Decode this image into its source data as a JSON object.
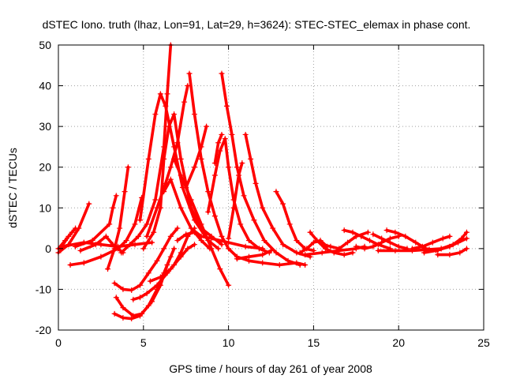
{
  "chart_data": {
    "type": "scatter",
    "title": "dSTEC Iono. truth (lhaz, Lon=91, Lat=29, h=3624): STEC-STEC_elemax in phase cont.",
    "xlabel": "GPS time / hours of day 261 of year 2008",
    "ylabel": "dSTEC  / TECUs",
    "xlim": [
      0,
      25
    ],
    "ylim": [
      -20,
      50
    ],
    "xticks": [
      0,
      5,
      10,
      15,
      20,
      25
    ],
    "yticks": [
      -20,
      -10,
      0,
      10,
      20,
      30,
      40,
      50
    ],
    "x_tick_labels": [
      "0",
      "5",
      "10",
      "15",
      "20",
      "25"
    ],
    "y_tick_labels": [
      "-20",
      "-10",
      "0",
      "10",
      "20",
      "30",
      "40",
      "50"
    ],
    "grid": true,
    "legend": "none",
    "marker": "plus",
    "color": "#ff0000",
    "series": [
      {
        "points": [
          [
            0.0,
            0.0
          ],
          [
            0.4,
            2.0
          ],
          [
            0.8,
            4.0
          ]
        ]
      },
      {
        "points": [
          [
            0.0,
            -1.0
          ],
          [
            0.6,
            1.0
          ],
          [
            1.2,
            5.0
          ],
          [
            1.8,
            11.0
          ]
        ]
      },
      {
        "points": [
          [
            0.1,
            0.0
          ],
          [
            0.6,
            3.0
          ],
          [
            1.0,
            5.0
          ]
        ]
      },
      {
        "points": [
          [
            0.2,
            0.5
          ],
          [
            1.5,
            1.5
          ],
          [
            2.5,
            1.0
          ],
          [
            3.5,
            0.5
          ],
          [
            4.5,
            1.0
          ],
          [
            5.5,
            1.5
          ]
        ]
      },
      {
        "points": [
          [
            0.7,
            -4.0
          ],
          [
            1.5,
            -3.5
          ],
          [
            2.5,
            -2.0
          ],
          [
            3.5,
            0.0
          ],
          [
            4.0,
            2.0
          ],
          [
            4.5,
            6.0
          ],
          [
            4.9,
            12.5
          ]
        ]
      },
      {
        "points": [
          [
            1.0,
            0.5
          ],
          [
            2.0,
            2.0
          ],
          [
            3.0,
            6.0
          ],
          [
            3.2,
            10.0
          ],
          [
            3.4,
            13.0
          ]
        ]
      },
      {
        "points": [
          [
            1.3,
            -0.5
          ],
          [
            2.2,
            1.0
          ],
          [
            2.8,
            3.0
          ],
          [
            3.2,
            1.0
          ],
          [
            3.8,
            -1.0
          ]
        ]
      },
      {
        "points": [
          [
            2.9,
            -5.0
          ],
          [
            3.3,
            0.0
          ],
          [
            3.6,
            5.0
          ],
          [
            3.9,
            14.0
          ],
          [
            4.1,
            20.0
          ]
        ]
      },
      {
        "points": [
          [
            3.7,
            -1.0
          ],
          [
            4.2,
            1.0
          ],
          [
            4.7,
            3.0
          ],
          [
            5.2,
            6.0
          ],
          [
            5.7,
            12.0
          ],
          [
            6.2,
            25.0
          ],
          [
            6.4,
            38.0
          ],
          [
            6.6,
            50.0
          ]
        ]
      },
      {
        "points": [
          [
            3.4,
            -12.0
          ],
          [
            3.8,
            -14.5
          ],
          [
            4.4,
            -16.5
          ],
          [
            4.9,
            -16.0
          ],
          [
            5.5,
            -13.0
          ],
          [
            6.0,
            -9.0
          ],
          [
            6.4,
            -4.0
          ],
          [
            6.8,
            0.0
          ]
        ]
      },
      {
        "points": [
          [
            3.3,
            -16.0
          ],
          [
            3.8,
            -17.0
          ],
          [
            4.3,
            -17.2
          ],
          [
            4.8,
            -16.5
          ],
          [
            5.3,
            -14.0
          ],
          [
            5.8,
            -10.0
          ],
          [
            6.2,
            -6.0
          ],
          [
            6.6,
            -2.0
          ]
        ]
      },
      {
        "points": [
          [
            3.3,
            -8.5
          ],
          [
            3.8,
            -10.0
          ],
          [
            4.3,
            -10.2
          ],
          [
            4.8,
            -9.0
          ],
          [
            5.3,
            -6.0
          ],
          [
            5.8,
            -3.0
          ],
          [
            6.2,
            0.0
          ],
          [
            6.6,
            3.0
          ],
          [
            7.0,
            5.0
          ]
        ]
      },
      {
        "points": [
          [
            4.4,
            -12.5
          ],
          [
            4.8,
            -12.0
          ],
          [
            5.2,
            -11.0
          ],
          [
            5.8,
            -9.0
          ],
          [
            6.4,
            -6.0
          ],
          [
            6.8,
            -4.0
          ],
          [
            7.2,
            -1.0
          ],
          [
            7.6,
            3.0
          ],
          [
            8.0,
            5.0
          ]
        ]
      },
      {
        "points": [
          [
            5.4,
            -8.0
          ],
          [
            6.0,
            -7.0
          ],
          [
            6.6,
            -5.0
          ],
          [
            7.2,
            -2.0
          ],
          [
            7.6,
            0.0
          ],
          [
            8.0,
            1.0
          ]
        ]
      },
      {
        "points": [
          [
            5.0,
            0.0
          ],
          [
            5.6,
            4.0
          ],
          [
            6.0,
            10.0
          ],
          [
            6.2,
            22.0
          ],
          [
            6.5,
            30.0
          ],
          [
            6.8,
            33.0
          ],
          [
            7.2,
            22.0
          ],
          [
            7.8,
            10.0
          ],
          [
            8.4,
            5.0
          ],
          [
            9.0,
            3.0
          ],
          [
            9.6,
            1.0
          ]
        ]
      },
      {
        "points": [
          [
            4.8,
            7.0
          ],
          [
            5.3,
            22.0
          ],
          [
            5.7,
            33.0
          ],
          [
            6.0,
            38.0
          ],
          [
            6.3,
            35.0
          ],
          [
            6.8,
            25.0
          ],
          [
            7.3,
            15.0
          ],
          [
            8.0,
            7.0
          ],
          [
            8.8,
            2.0
          ],
          [
            9.4,
            0.0
          ]
        ]
      },
      {
        "points": [
          [
            5.2,
            3.0
          ],
          [
            5.8,
            10.0
          ],
          [
            6.3,
            16.0
          ],
          [
            6.6,
            20.0
          ],
          [
            7.0,
            26.0
          ],
          [
            7.4,
            36.0
          ],
          [
            7.6,
            40.0
          ]
        ]
      },
      {
        "points": [
          [
            6.2,
            14.0
          ],
          [
            6.6,
            17.0
          ],
          [
            7.2,
            10.0
          ],
          [
            7.8,
            5.0
          ],
          [
            8.4,
            3.0
          ],
          [
            9.0,
            2.5
          ],
          [
            10.0,
            1.5
          ],
          [
            11.0,
            0.5
          ],
          [
            12.0,
            0.0
          ]
        ]
      },
      {
        "points": [
          [
            7.7,
            43.0
          ],
          [
            8.0,
            33.0
          ],
          [
            8.4,
            22.0
          ],
          [
            8.8,
            14.0
          ],
          [
            9.2,
            8.0
          ],
          [
            9.6,
            3.0
          ],
          [
            10.0,
            0.0
          ],
          [
            10.5,
            -2.0
          ],
          [
            11.2,
            -3.0
          ],
          [
            12.0,
            -3.5
          ],
          [
            13.0,
            -4.0
          ],
          [
            14.0,
            -3.5
          ],
          [
            14.5,
            -4.0
          ]
        ]
      },
      {
        "points": [
          [
            6.8,
            22.0
          ],
          [
            7.2,
            18.0
          ],
          [
            7.8,
            12.0
          ],
          [
            8.4,
            6.0
          ],
          [
            9.0,
            0.0
          ],
          [
            9.5,
            -5.0
          ],
          [
            10.0,
            -9.0
          ]
        ]
      },
      {
        "points": [
          [
            7.0,
            2.0
          ],
          [
            7.5,
            3.5
          ],
          [
            8.0,
            4.0
          ],
          [
            8.4,
            2.0
          ],
          [
            8.9,
            0.0
          ]
        ]
      },
      {
        "points": [
          [
            7.5,
            15.0
          ],
          [
            8.0,
            20.0
          ],
          [
            8.4,
            25.0
          ],
          [
            8.7,
            30.0
          ]
        ]
      },
      {
        "points": [
          [
            8.8,
            9.0
          ],
          [
            9.2,
            18.0
          ],
          [
            9.5,
            24.0
          ],
          [
            9.8,
            27.0
          ],
          [
            10.0,
            20.0
          ],
          [
            10.3,
            12.0
          ],
          [
            10.7,
            6.0
          ],
          [
            11.2,
            2.0
          ],
          [
            11.8,
            0.0
          ],
          [
            12.4,
            -1.0
          ]
        ]
      },
      {
        "points": [
          [
            9.2,
            21.0
          ],
          [
            9.4,
            26.0
          ],
          [
            9.6,
            28.0
          ]
        ]
      },
      {
        "points": [
          [
            9.6,
            43.0
          ],
          [
            9.9,
            35.0
          ],
          [
            10.2,
            28.0
          ],
          [
            10.5,
            20.0
          ],
          [
            10.9,
            13.0
          ],
          [
            11.5,
            7.0
          ],
          [
            12.1,
            2.0
          ],
          [
            12.8,
            -1.0
          ],
          [
            13.5,
            -3.0
          ],
          [
            14.2,
            -4.0
          ]
        ]
      },
      {
        "points": [
          [
            10.0,
            2.5
          ],
          [
            10.3,
            10.0
          ],
          [
            10.6,
            18.0
          ],
          [
            10.8,
            21.0
          ]
        ]
      },
      {
        "points": [
          [
            11.0,
            28.0
          ],
          [
            11.3,
            22.0
          ],
          [
            11.6,
            16.0
          ],
          [
            12.0,
            10.0
          ],
          [
            12.6,
            5.0
          ],
          [
            13.2,
            1.0
          ],
          [
            14.0,
            -1.0
          ],
          [
            14.8,
            -2.0
          ]
        ]
      },
      {
        "points": [
          [
            10.5,
            -2.5
          ],
          [
            11.2,
            -2.0
          ],
          [
            12.0,
            -1.5
          ],
          [
            12.5,
            -0.5
          ]
        ]
      },
      {
        "points": [
          [
            12.8,
            14.0
          ],
          [
            13.2,
            11.0
          ],
          [
            13.6,
            6.0
          ],
          [
            14.0,
            2.0
          ],
          [
            14.5,
            0.0
          ],
          [
            15.0,
            -0.5
          ]
        ]
      },
      {
        "points": [
          [
            14.2,
            -1.0
          ],
          [
            14.6,
            0.0
          ],
          [
            15.0,
            1.5
          ],
          [
            15.4,
            2.0
          ],
          [
            15.8,
            0.5
          ]
        ]
      },
      {
        "points": [
          [
            14.8,
            4.0
          ],
          [
            15.2,
            2.0
          ],
          [
            15.7,
            0.0
          ],
          [
            16.2,
            -1.0
          ],
          [
            16.8,
            -1.5
          ],
          [
            17.3,
            -1.0
          ]
        ]
      },
      {
        "points": [
          [
            14.5,
            -1.5
          ],
          [
            15.5,
            -1.0
          ],
          [
            16.5,
            -0.5
          ],
          [
            17.5,
            0.0
          ],
          [
            18.0,
            0.5
          ]
        ]
      },
      {
        "points": [
          [
            15.5,
            1.0
          ],
          [
            16.0,
            0.5
          ],
          [
            16.5,
            0.0
          ],
          [
            17.0,
            1.5
          ],
          [
            17.5,
            3.0
          ],
          [
            18.2,
            4.0
          ]
        ]
      },
      {
        "points": [
          [
            16.8,
            4.5
          ],
          [
            17.3,
            4.0
          ],
          [
            17.8,
            3.0
          ],
          [
            18.3,
            2.0
          ],
          [
            18.8,
            1.0
          ],
          [
            19.5,
            0.0
          ]
        ]
      },
      {
        "points": [
          [
            17.5,
            0.5
          ],
          [
            18.0,
            0.0
          ],
          [
            18.5,
            0.5
          ],
          [
            19.0,
            1.5
          ],
          [
            19.5,
            2.5
          ],
          [
            20.0,
            3.0
          ]
        ]
      },
      {
        "points": [
          [
            18.5,
            3.5
          ],
          [
            19.0,
            2.5
          ],
          [
            19.5,
            1.5
          ],
          [
            20.0,
            0.5
          ],
          [
            20.5,
            0.0
          ]
        ]
      },
      {
        "points": [
          [
            19.3,
            4.5
          ],
          [
            19.8,
            4.0
          ],
          [
            20.4,
            3.0
          ],
          [
            21.0,
            1.5
          ],
          [
            21.6,
            0.0
          ],
          [
            22.3,
            -0.5
          ]
        ]
      },
      {
        "points": [
          [
            18.8,
            -0.5
          ],
          [
            19.8,
            -0.5
          ],
          [
            20.8,
            -0.5
          ],
          [
            21.8,
            -0.2
          ],
          [
            22.5,
            0.0
          ]
        ]
      },
      {
        "points": [
          [
            20.8,
            0.0
          ],
          [
            21.4,
            0.5
          ],
          [
            22.0,
            1.5
          ],
          [
            22.6,
            2.5
          ],
          [
            23.0,
            3.0
          ]
        ]
      },
      {
        "points": [
          [
            21.5,
            -1.0
          ],
          [
            22.2,
            -0.5
          ],
          [
            23.0,
            0.5
          ],
          [
            23.5,
            1.5
          ],
          [
            24.0,
            2.5
          ]
        ]
      },
      {
        "points": [
          [
            22.5,
            0.0
          ],
          [
            23.2,
            1.0
          ],
          [
            23.7,
            2.5
          ],
          [
            24.0,
            4.0
          ]
        ]
      },
      {
        "points": [
          [
            22.3,
            -1.5
          ],
          [
            23.0,
            -1.5
          ],
          [
            23.6,
            -1.0
          ],
          [
            24.0,
            0.0
          ]
        ]
      }
    ]
  }
}
